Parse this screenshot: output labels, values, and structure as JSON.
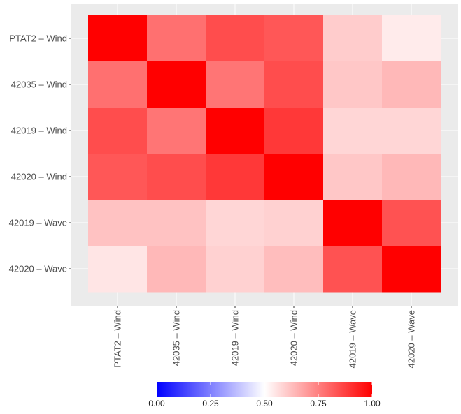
{
  "chart_data": {
    "type": "heatmap",
    "title": "",
    "xlabel": "",
    "ylabel": "",
    "x_categories": [
      "PTAT2 – Wind",
      "42035 – Wind",
      "42019 – Wind",
      "42020 – Wind",
      "42019 – Wave",
      "42020 – Wave"
    ],
    "y_categories": [
      "PTAT2 – Wind",
      "42035 – Wind",
      "42019 – Wind",
      "42020 – Wind",
      "42019 – Wave",
      "42020 – Wave"
    ],
    "values": [
      [
        1.0,
        0.78,
        0.85,
        0.83,
        0.6,
        0.54
      ],
      [
        0.78,
        1.0,
        0.77,
        0.85,
        0.61,
        0.64
      ],
      [
        0.85,
        0.77,
        1.0,
        0.89,
        0.58,
        0.58
      ],
      [
        0.83,
        0.85,
        0.89,
        1.0,
        0.61,
        0.64
      ],
      [
        0.62,
        0.62,
        0.58,
        0.59,
        1.0,
        0.84
      ],
      [
        0.55,
        0.64,
        0.59,
        0.63,
        0.84,
        1.0
      ]
    ],
    "color_scale": {
      "min": 0.0,
      "mid": 0.5,
      "max": 1.0,
      "low_color": "#0000ff",
      "mid_color": "#ffffff",
      "high_color": "#ff0000"
    },
    "legend": {
      "position": "bottom",
      "ticks": [
        "0.00",
        "0.25",
        "0.50",
        "0.75",
        "1.00"
      ]
    },
    "panel_background": "#ebebeb",
    "grid": true
  }
}
